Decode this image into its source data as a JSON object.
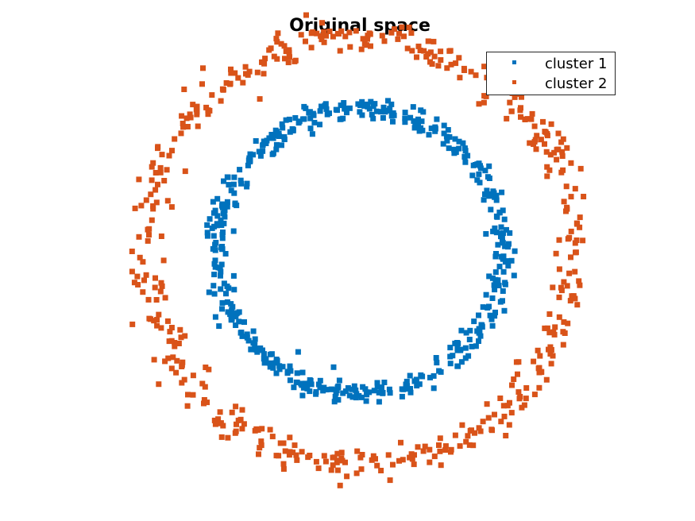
{
  "chart_data": {
    "type": "scatter",
    "title": "Original space",
    "xlabel": "",
    "ylabel": "",
    "axes_visible": false,
    "grid": false,
    "xlim": [
      -1.55,
      1.55
    ],
    "ylim": [
      -1.55,
      1.55
    ],
    "legend_position": "top-right",
    "marker": "square",
    "series": [
      {
        "name": "cluster 1",
        "color": "#0072BD",
        "generator": {
          "shape": "ring",
          "radius": 1.0,
          "noise": 0.04,
          "count": 500
        }
      },
      {
        "name": "cluster 2",
        "color": "#D95319",
        "generator": {
          "shape": "ring",
          "radius": 1.5,
          "noise": 0.06,
          "count": 500
        }
      }
    ]
  }
}
